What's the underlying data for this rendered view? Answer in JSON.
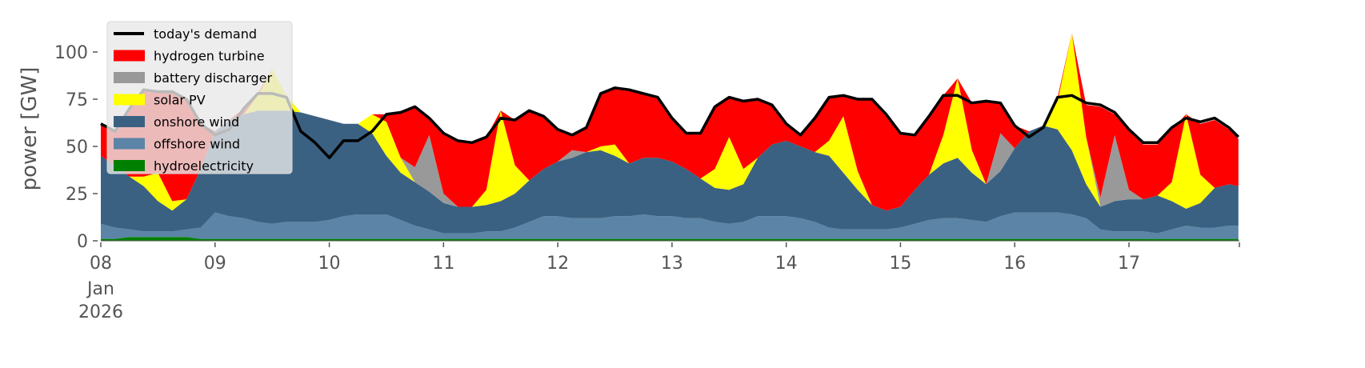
{
  "chart_data": {
    "type": "area",
    "title": "",
    "xlabel": "",
    "ylabel": "power [GW]",
    "ylim": [
      0,
      119
    ],
    "xlim_hours": [
      0,
      239
    ],
    "x_unit": "hours since 08 Jan 2026 00:00",
    "x_hours": [
      0,
      3,
      6,
      9,
      12,
      15,
      18,
      21,
      24,
      27,
      30,
      33,
      36,
      39,
      42,
      45,
      48,
      51,
      54,
      57,
      60,
      63,
      66,
      69,
      72,
      75,
      78,
      81,
      84,
      87,
      90,
      93,
      96,
      99,
      102,
      105,
      108,
      111,
      114,
      117,
      120,
      123,
      126,
      129,
      132,
      135,
      138,
      141,
      144,
      147,
      150,
      153,
      156,
      159,
      162,
      165,
      168,
      171,
      174,
      177,
      180,
      183,
      186,
      189,
      192,
      195,
      198,
      201,
      204,
      207,
      210,
      213,
      216,
      219,
      222,
      225,
      228,
      231,
      234,
      237,
      239
    ],
    "x_ticks": [
      {
        "hour": 0,
        "label": "08",
        "sub": "Jan",
        "sub2": "2026"
      },
      {
        "hour": 24,
        "label": "09"
      },
      {
        "hour": 48,
        "label": "10"
      },
      {
        "hour": 72,
        "label": "11"
      },
      {
        "hour": 96,
        "label": "12"
      },
      {
        "hour": 120,
        "label": "13"
      },
      {
        "hour": 144,
        "label": "14"
      },
      {
        "hour": 168,
        "label": "15"
      },
      {
        "hour": 192,
        "label": "16"
      },
      {
        "hour": 216,
        "label": "17"
      }
    ],
    "y_ticks": [
      0,
      25,
      50,
      75,
      100
    ],
    "legend_position": "top-left",
    "stack_series": [
      {
        "name": "hydroelectricity",
        "color": "#008000",
        "values": [
          1,
          1,
          2,
          2,
          2,
          2,
          2,
          1,
          1,
          1,
          1,
          1,
          1,
          1,
          1,
          1,
          1,
          1,
          1,
          1,
          1,
          1,
          1,
          1,
          1,
          1,
          1,
          1,
          1,
          1,
          1,
          1,
          1,
          1,
          1,
          1,
          1,
          1,
          1,
          1,
          1,
          1,
          1,
          1,
          1,
          1,
          1,
          1,
          1,
          1,
          1,
          1,
          1,
          1,
          1,
          1,
          1,
          1,
          1,
          1,
          1,
          1,
          1,
          1,
          1,
          1,
          1,
          1,
          1,
          1,
          1,
          1,
          1,
          1,
          1,
          1,
          1,
          1,
          1,
          1,
          1
        ]
      },
      {
        "name": "offshore wind",
        "color": "#5b84a6",
        "values": [
          8,
          6,
          4,
          3,
          3,
          3,
          4,
          6,
          14,
          12,
          11,
          9,
          8,
          9,
          9,
          9,
          10,
          12,
          13,
          13,
          13,
          10,
          7,
          5,
          3,
          3,
          3,
          4,
          4,
          6,
          9,
          12,
          12,
          11,
          11,
          11,
          12,
          12,
          13,
          12,
          12,
          11,
          11,
          9,
          8,
          9,
          12,
          12,
          12,
          11,
          9,
          6,
          5,
          5,
          5,
          5,
          6,
          8,
          10,
          11,
          11,
          10,
          9,
          12,
          14,
          14,
          14,
          14,
          13,
          11,
          5,
          4,
          4,
          4,
          3,
          5,
          7,
          6,
          6,
          7,
          7
        ]
      },
      {
        "name": "onshore wind",
        "color": "#3b6182",
        "values": [
          36,
          33,
          28,
          24,
          16,
          11,
          16,
          31,
          43,
          51,
          55,
          59,
          60,
          59,
          58,
          56,
          53,
          49,
          48,
          43,
          31,
          25,
          23,
          20,
          16,
          14,
          14,
          14,
          16,
          18,
          22,
          25,
          29,
          32,
          35,
          36,
          32,
          28,
          30,
          31,
          29,
          26,
          21,
          18,
          18,
          20,
          31,
          38,
          40,
          38,
          37,
          38,
          30,
          21,
          13,
          10,
          11,
          18,
          24,
          29,
          32,
          25,
          20,
          24,
          34,
          43,
          46,
          44,
          34,
          18,
          12,
          16,
          17,
          17,
          20,
          15,
          9,
          13,
          21,
          22,
          21
        ]
      },
      {
        "name": "solar PV",
        "color": "#ffff00",
        "values": [
          0,
          0,
          0,
          5,
          15,
          5,
          0,
          0,
          0,
          0,
          0,
          8,
          22,
          8,
          0,
          0,
          0,
          0,
          0,
          10,
          18,
          8,
          0,
          0,
          0,
          0,
          0,
          8,
          48,
          15,
          0,
          0,
          0,
          0,
          0,
          2,
          6,
          0,
          0,
          0,
          0,
          0,
          0,
          10,
          28,
          8,
          0,
          0,
          0,
          0,
          0,
          8,
          30,
          10,
          0,
          0,
          0,
          0,
          0,
          15,
          42,
          12,
          0,
          0,
          0,
          0,
          0,
          15,
          62,
          25,
          0,
          0,
          0,
          0,
          0,
          10,
          50,
          15,
          0,
          0,
          0
        ]
      },
      {
        "name": "battery discharger",
        "color": "#999999",
        "values": [
          0,
          0,
          0,
          0,
          0,
          0,
          0,
          0,
          0,
          0,
          0,
          0,
          0,
          0,
          0,
          0,
          0,
          0,
          0,
          0,
          0,
          0,
          8,
          30,
          5,
          0,
          0,
          0,
          0,
          0,
          0,
          0,
          0,
          4,
          0,
          0,
          0,
          0,
          0,
          0,
          0,
          0,
          0,
          0,
          0,
          0,
          0,
          0,
          0,
          0,
          0,
          0,
          0,
          0,
          0,
          0,
          0,
          0,
          0,
          0,
          0,
          0,
          0,
          20,
          0,
          0,
          0,
          0,
          0,
          0,
          5,
          35,
          5,
          0,
          0,
          0,
          0,
          0,
          0,
          0,
          0
        ]
      },
      {
        "name": "hydrogen turbine",
        "color": "#ff0000",
        "values": [
          17,
          18,
          36,
          46,
          43,
          58,
          53,
          24,
          0,
          0,
          3,
          1,
          0,
          0,
          0,
          0,
          0,
          0,
          0,
          0,
          4,
          24,
          32,
          9,
          32,
          35,
          34,
          28,
          0,
          24,
          37,
          28,
          17,
          8,
          13,
          28,
          30,
          39,
          34,
          32,
          23,
          19,
          24,
          33,
          21,
          36,
          31,
          21,
          9,
          6,
          18,
          23,
          11,
          38,
          56,
          51,
          39,
          29,
          31,
          21,
          0,
          25,
          44,
          16,
          12,
          0,
          0,
          2,
          0,
          17,
          48,
          11,
          31,
          29,
          27,
          28,
          0,
          27,
          36,
          29,
          25
        ]
      }
    ],
    "line_series": {
      "name": "today's demand",
      "color": "#000000",
      "values": [
        62,
        58,
        70,
        80,
        79,
        79,
        75,
        62,
        56,
        59,
        70,
        78,
        78,
        76,
        58,
        52,
        44,
        53,
        53,
        58,
        67,
        68,
        71,
        65,
        57,
        53,
        52,
        55,
        65,
        64,
        69,
        66,
        59,
        56,
        60,
        78,
        81,
        80,
        78,
        76,
        65,
        57,
        57,
        71,
        76,
        74,
        75,
        72,
        62,
        56,
        65,
        76,
        77,
        75,
        75,
        67,
        57,
        56,
        66,
        77,
        77,
        73,
        74,
        73,
        61,
        55,
        60,
        76,
        77,
        73,
        72,
        68,
        59,
        52,
        52,
        60,
        65,
        63,
        65,
        60,
        55
      ]
    },
    "legend_order": [
      "today's demand",
      "hydrogen turbine",
      "battery discharger",
      "solar PV",
      "onshore wind",
      "offshore wind",
      "hydroelectricity"
    ]
  }
}
